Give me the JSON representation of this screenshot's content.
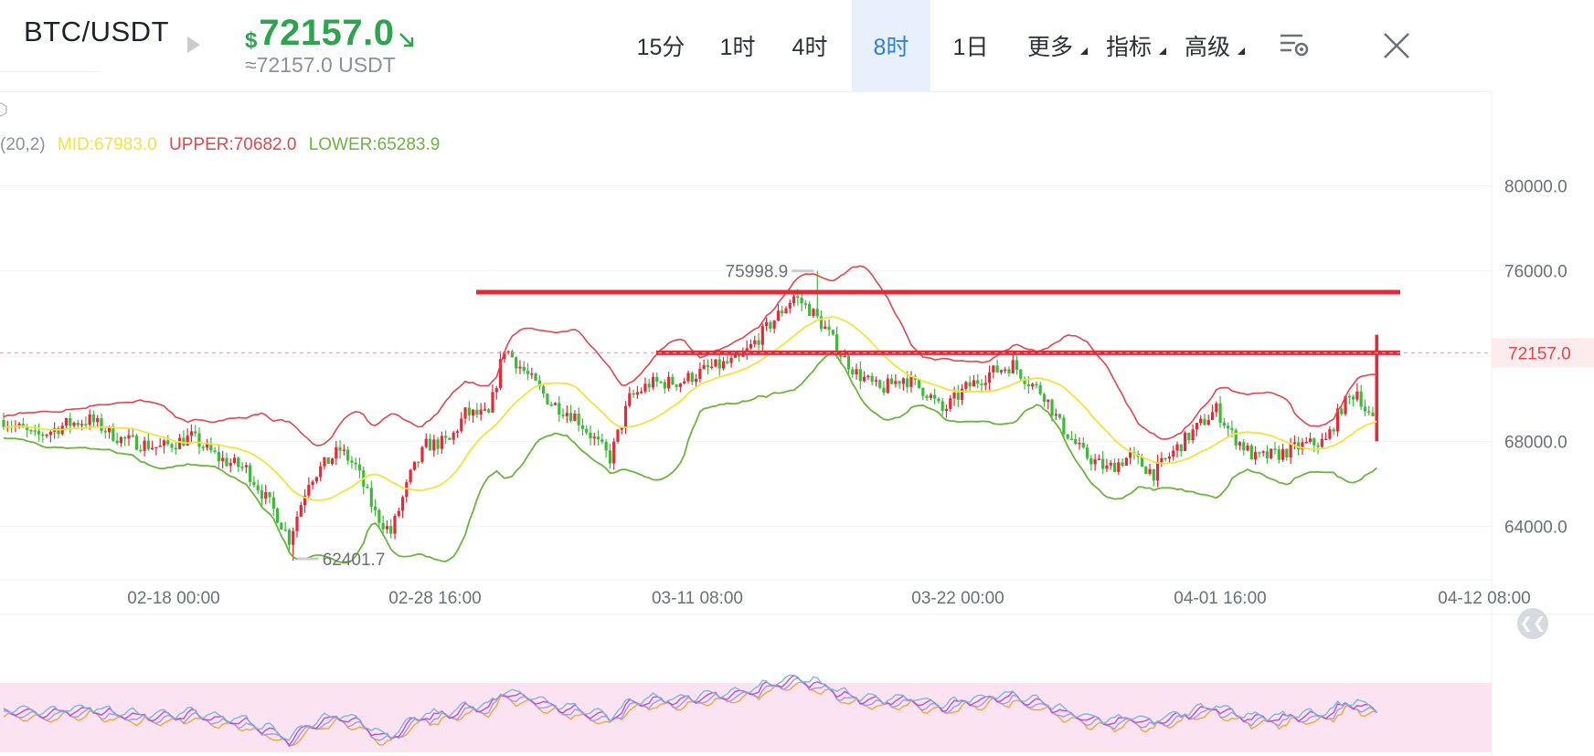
{
  "header": {
    "pair": "BTC/USDT",
    "price_currency": "$",
    "price": "72157.0",
    "price_sub": "≈72157.0 USDT",
    "price_color": "#2fa44f",
    "tabs": [
      {
        "label": "15分",
        "active": false,
        "caret": false
      },
      {
        "label": "1时",
        "active": false,
        "caret": false
      },
      {
        "label": "4时",
        "active": false,
        "caret": false
      },
      {
        "label": "8时",
        "active": true,
        "caret": false
      },
      {
        "label": "1日",
        "active": false,
        "caret": false
      },
      {
        "label": "更多",
        "active": false,
        "caret": true
      },
      {
        "label": "指标",
        "active": false,
        "caret": true
      },
      {
        "label": "高级",
        "active": false,
        "caret": true
      }
    ],
    "icons": [
      "play-icon",
      "arrow-down-right-icon",
      "chart-settings-icon",
      "close-icon"
    ]
  },
  "indicator": {
    "params": "(20,2)",
    "mid": "MID:67983.0",
    "upper": "UPPER:70682.0",
    "lower": "LOWER:65283.9",
    "colors": {
      "mid": "#f2e43c",
      "upper": "#e0474f",
      "lower": "#6cb53a"
    }
  },
  "chart_data": {
    "type": "candlestick",
    "symbol": "BTC/USDT",
    "interval": "8时",
    "y_ticks": [
      80000,
      76000,
      72000,
      68000,
      64000
    ],
    "y_tick_labels": [
      "80000.0",
      "76000.0",
      "72000.0",
      "68000.0",
      "64000.0"
    ],
    "ylim": [
      61500,
      84000
    ],
    "x_tick_labels": [
      "02-18 00:00",
      "02-28 16:00",
      "03-11 08:00",
      "03-22 00:00",
      "04-01 16:00",
      "04-12 08:00"
    ],
    "current_price": 72157.0,
    "current_price_label": "72157.0",
    "max_label": "75998.9",
    "min_label": "62401.7",
    "horizontal_lines": [
      72157,
      75000
    ],
    "colors": {
      "up": "#e02b3b",
      "down": "#3fb93a",
      "line": "#e02b3b"
    }
  },
  "secondary_band_color": "#fbe3f1"
}
